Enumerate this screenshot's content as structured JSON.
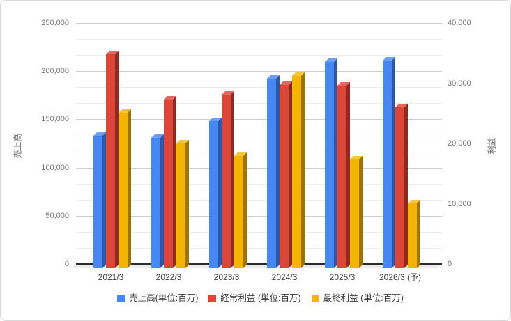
{
  "chart_data": {
    "type": "bar",
    "title": "",
    "categories": [
      "2021/3",
      "2022/3",
      "2023/3",
      "2024/3",
      "2025/3",
      "2026/3 (予)"
    ],
    "series": [
      {
        "name": "売上高(単位:百万)",
        "axis": "left",
        "color": "#4787f3",
        "color_top": "#6f9ef6",
        "color_side": "#2e57a8",
        "values": [
          137000,
          135300,
          152700,
          196800,
          213700,
          215000
        ]
      },
      {
        "name": "経常利益 (単位:百万)",
        "axis": "right",
        "color": "#db4639",
        "color_top": "#e2675c",
        "color_side": "#8e2a20",
        "values": [
          35500,
          28000,
          28800,
          30400,
          30300,
          26700
        ]
      },
      {
        "name": "最終利益 (単位:百万)",
        "axis": "right",
        "color": "#f4b401",
        "color_top": "#f6c53d",
        "color_side": "#9f7300",
        "values": [
          25800,
          20700,
          18600,
          31900,
          18000,
          10700
        ]
      }
    ],
    "left_axis": {
      "title": "売上高",
      "min": 0,
      "max": 250000,
      "tick_interval": 50000,
      "tick_labels": [
        "0",
        "50,000",
        "100,000",
        "150,000",
        "200,000",
        "250,000"
      ]
    },
    "right_axis": {
      "title": "利益",
      "min": 0,
      "max": 40000,
      "tick_interval": 10000,
      "tick_labels": [
        "0",
        "10,000",
        "20,000",
        "30,000",
        "40,000"
      ]
    },
    "grid": {
      "major_color": "#cccccc",
      "minor_color": "#ececec",
      "minor_lines_per_major_interval": 2,
      "baseline_color": "#2b2b2b"
    },
    "legend_position": "bottom",
    "bar_style": "pseudo-3d"
  }
}
